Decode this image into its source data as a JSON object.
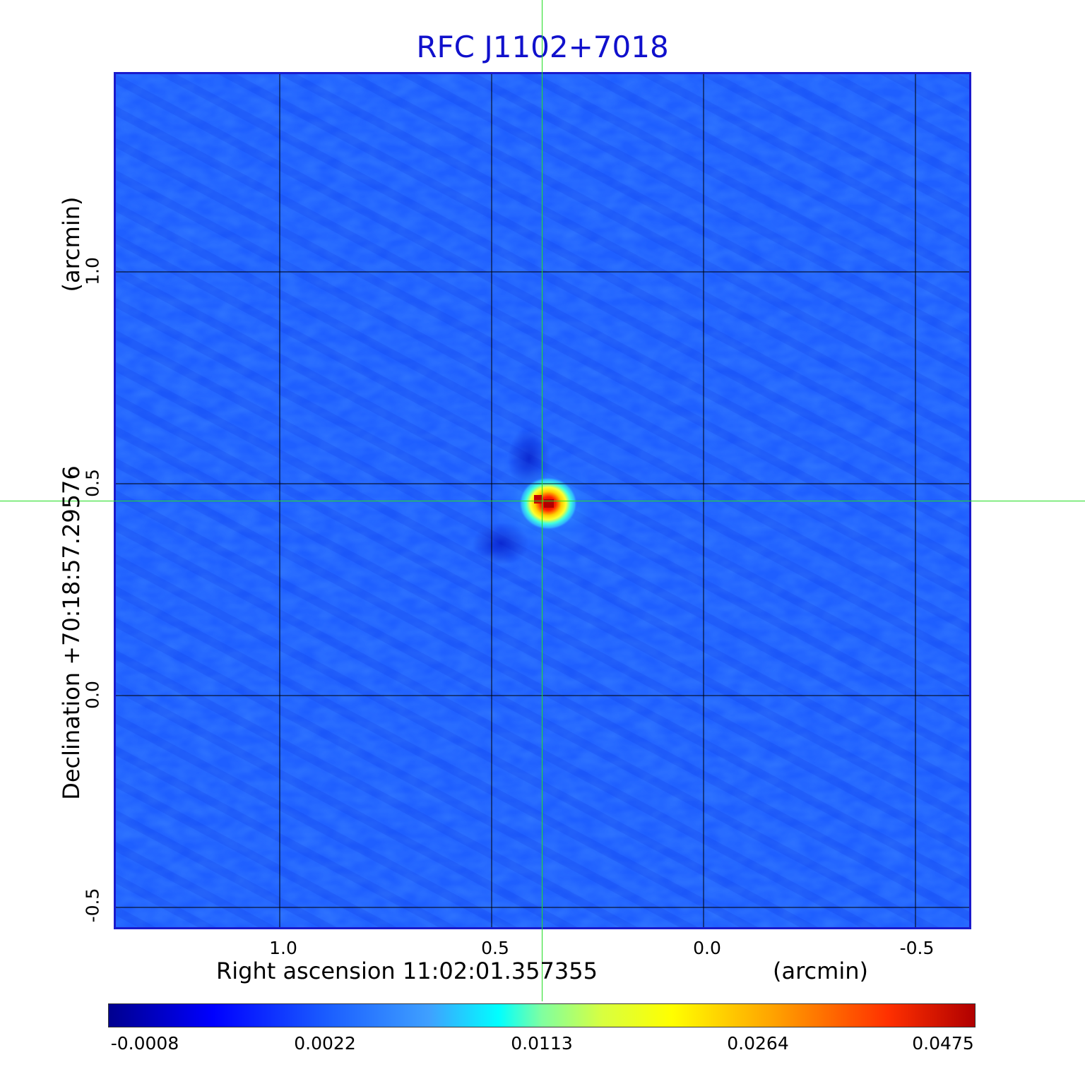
{
  "title": "RFC J1102+7018",
  "x_axis": {
    "label": "Right ascension  11:02:01.357355",
    "unit": "(arcmin)",
    "ticks": [
      "1.0",
      "0.5",
      "0.0",
      "-0.5"
    ]
  },
  "y_axis": {
    "label": "Declination  +70:18:57.29576",
    "unit": "(arcmin)",
    "ticks": [
      "1.0",
      "0.5",
      "0.0",
      "-0.5"
    ]
  },
  "colorbar": {
    "ticks": [
      "-0.0008",
      "0.0022",
      "0.0113",
      "0.0264",
      "0.0475"
    ],
    "colormap": "jet"
  },
  "colors": {
    "title": "#1010cc",
    "frame": "#1a1acc",
    "background_noise": "#1f5fff",
    "crosshair": "#22dd22",
    "source_peak": "#d00000"
  }
}
